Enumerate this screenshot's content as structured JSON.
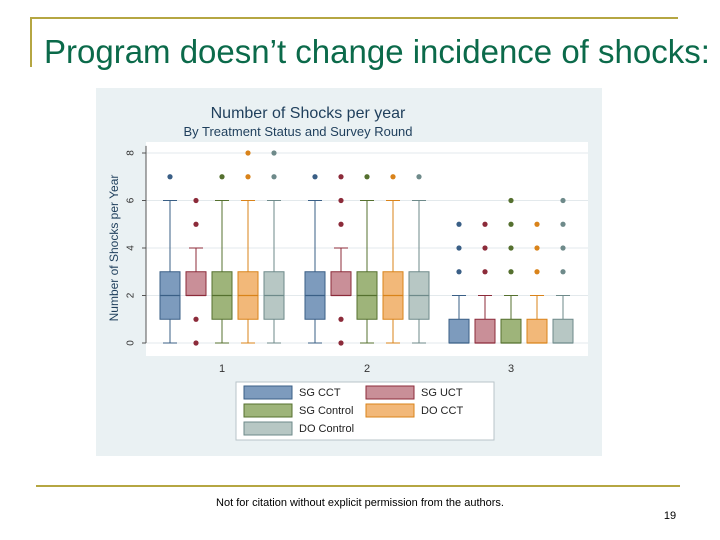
{
  "slide": {
    "title": "Program doesn’t change incidence of shocks:",
    "footer_note": "Not for citation without explicit permission from the authors.",
    "page_number": "19"
  },
  "colors": {
    "title": "#0b6a4a",
    "rule": "#b5a642",
    "chart_background": "#eaf1f3",
    "plot_background": "#ffffff"
  },
  "chart_data": {
    "type": "box",
    "title": "Number of Shocks per year",
    "subtitle": "By Treatment Status and Survey Round",
    "xlabel": "",
    "ylabel": "Number of Shocks per Year",
    "ylim": [
      0,
      8.5
    ],
    "yticks": [
      0,
      2,
      4,
      6,
      8
    ],
    "categories": [
      "1",
      "2",
      "3"
    ],
    "legend_position": "bottom",
    "series": [
      {
        "name": "SG CCT",
        "color": "#3a5f86",
        "fill": "#7d9bbd",
        "boxes": [
          {
            "q1": 1,
            "median": 2,
            "q3": 3,
            "lower_whisker": 0,
            "upper_whisker": 6,
            "outliers": [
              7
            ]
          },
          {
            "q1": 1,
            "median": 2,
            "q3": 3,
            "lower_whisker": 0,
            "upper_whisker": 6,
            "outliers": [
              7
            ]
          },
          {
            "q1": 0,
            "median": 0,
            "q3": 1,
            "lower_whisker": 0,
            "upper_whisker": 2,
            "outliers": [
              3,
              4,
              5
            ]
          }
        ]
      },
      {
        "name": "SG UCT",
        "color": "#8c2b3a",
        "fill": "#c98f98",
        "boxes": [
          {
            "q1": 2,
            "median": 2,
            "q3": 3,
            "lower_whisker": 2,
            "upper_whisker": 4,
            "outliers": [
              0,
              1,
              5,
              6
            ]
          },
          {
            "q1": 2,
            "median": 2,
            "q3": 3,
            "lower_whisker": 2,
            "upper_whisker": 4,
            "outliers": [
              0,
              1,
              5,
              6,
              7
            ]
          },
          {
            "q1": 0,
            "median": 0,
            "q3": 1,
            "lower_whisker": 0,
            "upper_whisker": 2,
            "outliers": [
              3,
              4,
              5
            ]
          }
        ]
      },
      {
        "name": "SG Control",
        "color": "#55702f",
        "fill": "#9eb47a",
        "boxes": [
          {
            "q1": 1,
            "median": 2,
            "q3": 3,
            "lower_whisker": 0,
            "upper_whisker": 6,
            "outliers": [
              7
            ]
          },
          {
            "q1": 1,
            "median": 2,
            "q3": 3,
            "lower_whisker": 0,
            "upper_whisker": 6,
            "outliers": [
              7
            ]
          },
          {
            "q1": 0,
            "median": 0,
            "q3": 1,
            "lower_whisker": 0,
            "upper_whisker": 2,
            "outliers": [
              3,
              4,
              5,
              6
            ]
          }
        ]
      },
      {
        "name": "DO CCT",
        "color": "#d9831a",
        "fill": "#f2b879",
        "boxes": [
          {
            "q1": 1,
            "median": 2,
            "q3": 3,
            "lower_whisker": 0,
            "upper_whisker": 6,
            "outliers": [
              7,
              8
            ]
          },
          {
            "q1": 1,
            "median": 2,
            "q3": 3,
            "lower_whisker": 0,
            "upper_whisker": 6,
            "outliers": [
              7
            ]
          },
          {
            "q1": 0,
            "median": 0,
            "q3": 1,
            "lower_whisker": 0,
            "upper_whisker": 2,
            "outliers": [
              3,
              4,
              5
            ]
          }
        ]
      },
      {
        "name": "DO Control",
        "color": "#6e8a8a",
        "fill": "#b7c7c4",
        "boxes": [
          {
            "q1": 1,
            "median": 2,
            "q3": 3,
            "lower_whisker": 0,
            "upper_whisker": 6,
            "outliers": [
              7,
              8
            ]
          },
          {
            "q1": 1,
            "median": 2,
            "q3": 3,
            "lower_whisker": 0,
            "upper_whisker": 6,
            "outliers": [
              7
            ]
          },
          {
            "q1": 0,
            "median": 0,
            "q3": 1,
            "lower_whisker": 0,
            "upper_whisker": 2,
            "outliers": [
              3,
              4,
              5,
              6
            ]
          }
        ]
      }
    ]
  }
}
